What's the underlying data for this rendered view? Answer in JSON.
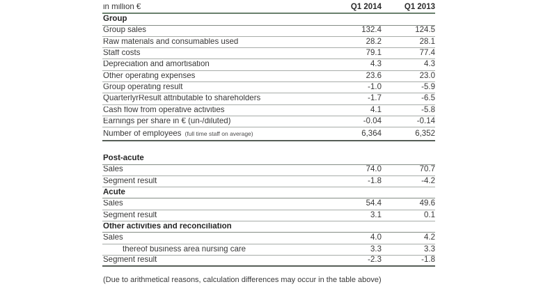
{
  "table_header": {
    "unit_label": "in million €",
    "col_2014": "Q1 2014",
    "col_2013": "Q1 2013"
  },
  "tables": [
    {
      "name": "group-key-figures",
      "rows": [
        {
          "type": "section",
          "label": "Group"
        },
        {
          "type": "data",
          "label": "Group sales",
          "v2014": "132.4",
          "v2013": "124.5"
        },
        {
          "type": "data",
          "label": "Raw materials and consumables used",
          "v2014": "28.2",
          "v2013": "28.1"
        },
        {
          "type": "data",
          "label": "Staff costs",
          "v2014": "79.1",
          "v2013": "77.4"
        },
        {
          "type": "data",
          "label": "Depreciation and amortisation",
          "v2014": "4.3",
          "v2013": "4.3"
        },
        {
          "type": "data",
          "label": "Other operating expenses",
          "v2014": "23.6",
          "v2013": "23.0"
        },
        {
          "type": "data",
          "label": "Group operating result",
          "v2014": "-1.0",
          "v2013": "-5.9"
        },
        {
          "type": "data",
          "label": "QuarterlyrResult attributable to shareholders",
          "v2014": "-1.7",
          "v2013": "-6.5"
        },
        {
          "type": "data",
          "label": "Cash flow from operative activities",
          "v2014": "4.1",
          "v2013": "-5.8"
        },
        {
          "type": "data",
          "label": "Earnings per share in € (un-/diluted)",
          "v2014": "-0.04",
          "v2013": "-0.14"
        },
        {
          "type": "data",
          "label": "Number of employees",
          "note": "(full time staff on average)",
          "v2014": "6,364",
          "v2013": "6,352",
          "end": true,
          "tall": true
        }
      ]
    },
    {
      "name": "segment-figures",
      "rows": [
        {
          "type": "section",
          "label": "Post-acute"
        },
        {
          "type": "data",
          "label": "Sales",
          "v2014": "74.0",
          "v2013": "70.7"
        },
        {
          "type": "data",
          "label": "Segment result",
          "v2014": "-1.8",
          "v2013": "-4.2"
        },
        {
          "type": "section",
          "label": "Acute"
        },
        {
          "type": "data",
          "label": "Sales",
          "v2014": "54.4",
          "v2013": "49.6"
        },
        {
          "type": "data",
          "label": "Segment result",
          "v2014": "3.1",
          "v2013": "0.1"
        },
        {
          "type": "section",
          "label": "Other activities and reconciliation"
        },
        {
          "type": "data",
          "label": "Sales",
          "v2014": "4.0",
          "v2013": "4.2"
        },
        {
          "type": "data",
          "label": "thereof business area nursing care",
          "indent": true,
          "v2014": "3.3",
          "v2013": "3.3"
        },
        {
          "type": "data",
          "label": "Segment result",
          "v2014": "-2.3",
          "v2013": "-1.8",
          "end": true
        }
      ]
    }
  ],
  "footnote": "(Due to arithmetical reasons, calculation differences may occur in the table above)",
  "colors": {
    "text": "#383838",
    "section_text": "#262626",
    "rule_light": "#a7aca8",
    "rule_medium": "#848c85",
    "rule_dark_green": "#69806c",
    "rule_dark": "#565e57"
  }
}
